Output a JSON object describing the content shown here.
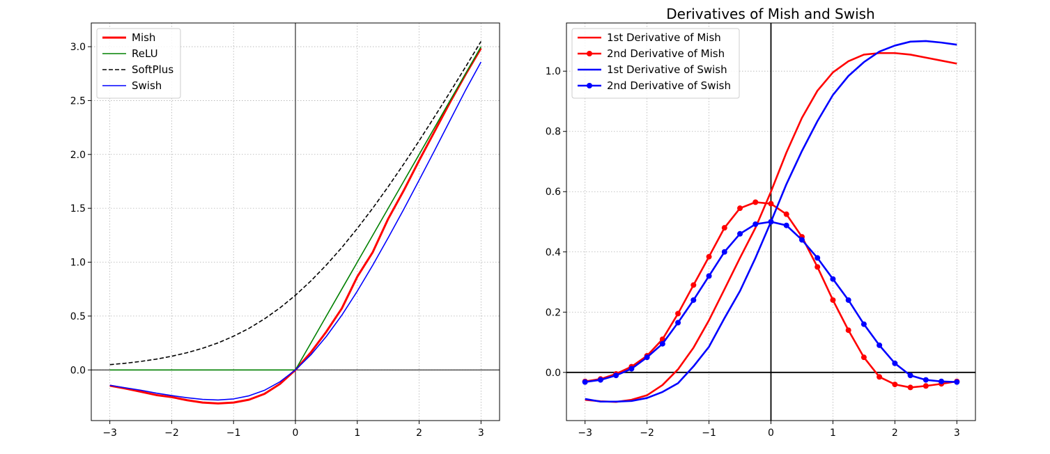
{
  "chart_data": [
    {
      "type": "line",
      "title": "",
      "xlabel": "",
      "ylabel": "",
      "xlim": [
        -3.3,
        3.3
      ],
      "ylim": [
        -0.47,
        3.22
      ],
      "grid": true,
      "x_ticks": [
        -3,
        -2,
        -1,
        0,
        1,
        2,
        3
      ],
      "x_tick_labels": [
        "−3",
        "−2",
        "−1",
        "0",
        "1",
        "2",
        "3"
      ],
      "y_ticks": [
        0.0,
        0.5,
        1.0,
        1.5,
        2.0,
        2.5,
        3.0
      ],
      "y_tick_labels": [
        "0.0",
        "0.5",
        "1.0",
        "1.5",
        "2.0",
        "2.5",
        "3.0"
      ],
      "reference_lines": {
        "x": 0,
        "y": 0
      },
      "legend_position": "top-left",
      "x": [
        -3,
        -2.75,
        -2.5,
        -2.25,
        -2,
        -1.75,
        -1.5,
        -1.25,
        -1,
        -0.75,
        -0.5,
        -0.25,
        0,
        0.25,
        0.5,
        0.75,
        1,
        1.25,
        1.5,
        1.75,
        2,
        2.25,
        2.5,
        2.75,
        3
      ],
      "series": [
        {
          "name": "Mish",
          "color": "#ff0000",
          "style": "solid",
          "width": "thick",
          "values": [
            -0.146,
            -0.172,
            -0.202,
            -0.233,
            -0.252,
            -0.281,
            -0.303,
            -0.311,
            -0.303,
            -0.276,
            -0.222,
            -0.13,
            0.0,
            0.163,
            0.355,
            0.571,
            0.865,
            1.093,
            1.403,
            1.664,
            1.944,
            2.214,
            2.485,
            2.742,
            2.986
          ]
        },
        {
          "name": "ReLU",
          "color": "#008000",
          "style": "solid",
          "width": "normal",
          "values": [
            0,
            0,
            0,
            0,
            0,
            0,
            0,
            0,
            0,
            0,
            0,
            0,
            0,
            0.25,
            0.5,
            0.75,
            1,
            1.25,
            1.5,
            1.75,
            2,
            2.25,
            2.5,
            2.75,
            3
          ]
        },
        {
          "name": "SoftPlus",
          "color": "#000000",
          "style": "dashed",
          "width": "normal",
          "values": [
            0.049,
            0.062,
            0.079,
            0.1,
            0.127,
            0.16,
            0.201,
            0.251,
            0.313,
            0.386,
            0.474,
            0.576,
            0.693,
            0.826,
            0.974,
            1.136,
            1.313,
            1.501,
            1.701,
            1.91,
            2.127,
            2.351,
            2.579,
            2.812,
            3.049
          ]
        },
        {
          "name": "Swish",
          "color": "#0000ff",
          "style": "solid",
          "width": "normal",
          "values": [
            -0.142,
            -0.166,
            -0.188,
            -0.215,
            -0.238,
            -0.258,
            -0.273,
            -0.279,
            -0.269,
            -0.24,
            -0.189,
            -0.11,
            0.0,
            0.14,
            0.311,
            0.508,
            0.731,
            0.972,
            1.227,
            1.49,
            1.762,
            2.037,
            2.317,
            2.596,
            2.858
          ]
        }
      ]
    },
    {
      "type": "line",
      "title": "Derivatives of Mish and Swish",
      "xlabel": "",
      "ylabel": "",
      "xlim": [
        -3.3,
        3.3
      ],
      "ylim": [
        -0.16,
        1.16
      ],
      "grid": true,
      "x_ticks": [
        -3,
        -2,
        -1,
        0,
        1,
        2,
        3
      ],
      "x_tick_labels": [
        "−3",
        "−2",
        "−1",
        "0",
        "1",
        "2",
        "3"
      ],
      "y_ticks": [
        0.0,
        0.2,
        0.4,
        0.6,
        0.8,
        1.0
      ],
      "y_tick_labels": [
        "0.0",
        "0.2",
        "0.4",
        "0.6",
        "0.8",
        "1.0"
      ],
      "reference_lines": {
        "x": 0,
        "y": 0
      },
      "legend_position": "top-left",
      "x": [
        -3,
        -2.75,
        -2.5,
        -2.25,
        -2,
        -1.75,
        -1.5,
        -1.25,
        -1,
        -0.75,
        -0.5,
        -0.25,
        0,
        0.25,
        0.5,
        0.75,
        1,
        1.25,
        1.5,
        1.75,
        2,
        2.25,
        2.5,
        2.75,
        3
      ],
      "series": [
        {
          "name": "1st Derivative of Mish",
          "color": "#ff0000",
          "markers": false,
          "values": [
            -0.091,
            -0.096,
            -0.098,
            -0.091,
            -0.076,
            -0.042,
            0.01,
            0.082,
            0.173,
            0.276,
            0.38,
            0.48,
            0.6,
            0.73,
            0.845,
            0.935,
            0.996,
            1.033,
            1.055,
            1.06,
            1.06,
            1.055,
            1.045,
            1.035,
            1.025
          ]
        },
        {
          "name": "2nd Derivative of Mish",
          "color": "#ff0000",
          "markers": true,
          "values": [
            -0.03,
            -0.022,
            -0.005,
            0.019,
            0.055,
            0.11,
            0.195,
            0.29,
            0.384,
            0.48,
            0.545,
            0.565,
            0.56,
            0.525,
            0.45,
            0.35,
            0.24,
            0.14,
            0.05,
            -0.015,
            -0.04,
            -0.05,
            -0.045,
            -0.038,
            -0.03
          ]
        },
        {
          "name": "1st Derivative of Swish",
          "color": "#0000ff",
          "markers": false,
          "values": [
            -0.088,
            -0.097,
            -0.097,
            -0.095,
            -0.085,
            -0.065,
            -0.036,
            0.02,
            0.085,
            0.18,
            0.27,
            0.38,
            0.5,
            0.625,
            0.735,
            0.834,
            0.921,
            0.984,
            1.03,
            1.065,
            1.085,
            1.098,
            1.1,
            1.095,
            1.088
          ]
        },
        {
          "name": "2nd Derivative of Swish",
          "color": "#0000ff",
          "markers": true,
          "values": [
            -0.032,
            -0.025,
            -0.01,
            0.012,
            0.05,
            0.095,
            0.165,
            0.24,
            0.32,
            0.4,
            0.46,
            0.492,
            0.5,
            0.488,
            0.44,
            0.38,
            0.31,
            0.24,
            0.16,
            0.09,
            0.03,
            -0.01,
            -0.025,
            -0.03,
            -0.032
          ]
        }
      ]
    }
  ]
}
